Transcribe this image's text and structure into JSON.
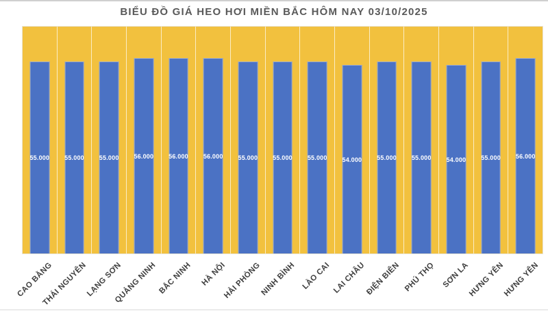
{
  "chart_data": {
    "type": "bar",
    "title": "BIỂU ĐỒ GIÁ HEO HƠI MIỀN BẮC HÔM NAY 03/10/2025",
    "categories": [
      "CAO BẰNG",
      "THÁI NGUYÊN",
      "LẠNG SƠN",
      "QUẢNG NINH",
      "BẮC NINH",
      "HÀ NỘI",
      "HẢI PHÒNG",
      "NINH BÌNH",
      "LÀO CAI",
      "LAI CHÂU",
      "ĐIỆN BIÊN",
      "PHÚ THỌ",
      "SƠN LA",
      "HƯNG YÊN",
      "HƯNG YÊN"
    ],
    "values": [
      55000,
      55000,
      55000,
      56000,
      56000,
      56000,
      55000,
      55000,
      55000,
      54000,
      55000,
      55000,
      54000,
      55000,
      56000
    ],
    "value_labels": [
      "55.000",
      "55.000",
      "55.000",
      "56.000",
      "56.000",
      "56.000",
      "55.000",
      "55.000",
      "55.000",
      "54.000",
      "55.000",
      "55.000",
      "54.000",
      "55.000",
      "56.000"
    ],
    "xlabel": "",
    "ylabel": "",
    "ylim": [
      0,
      65000
    ],
    "grid": "vertical category separators, white",
    "legend": "none",
    "x_tick_rotation_deg": 45,
    "colors": {
      "plot_background": "#F2C13E",
      "bar_fill": "#4B72C4",
      "bar_border": "#9DABCA",
      "value_label": "#FFFFFF",
      "title": "#595959",
      "tick_label": "#3F3F3F",
      "gridline": "#FFFFFF",
      "divider": "#D9D9D9"
    }
  }
}
